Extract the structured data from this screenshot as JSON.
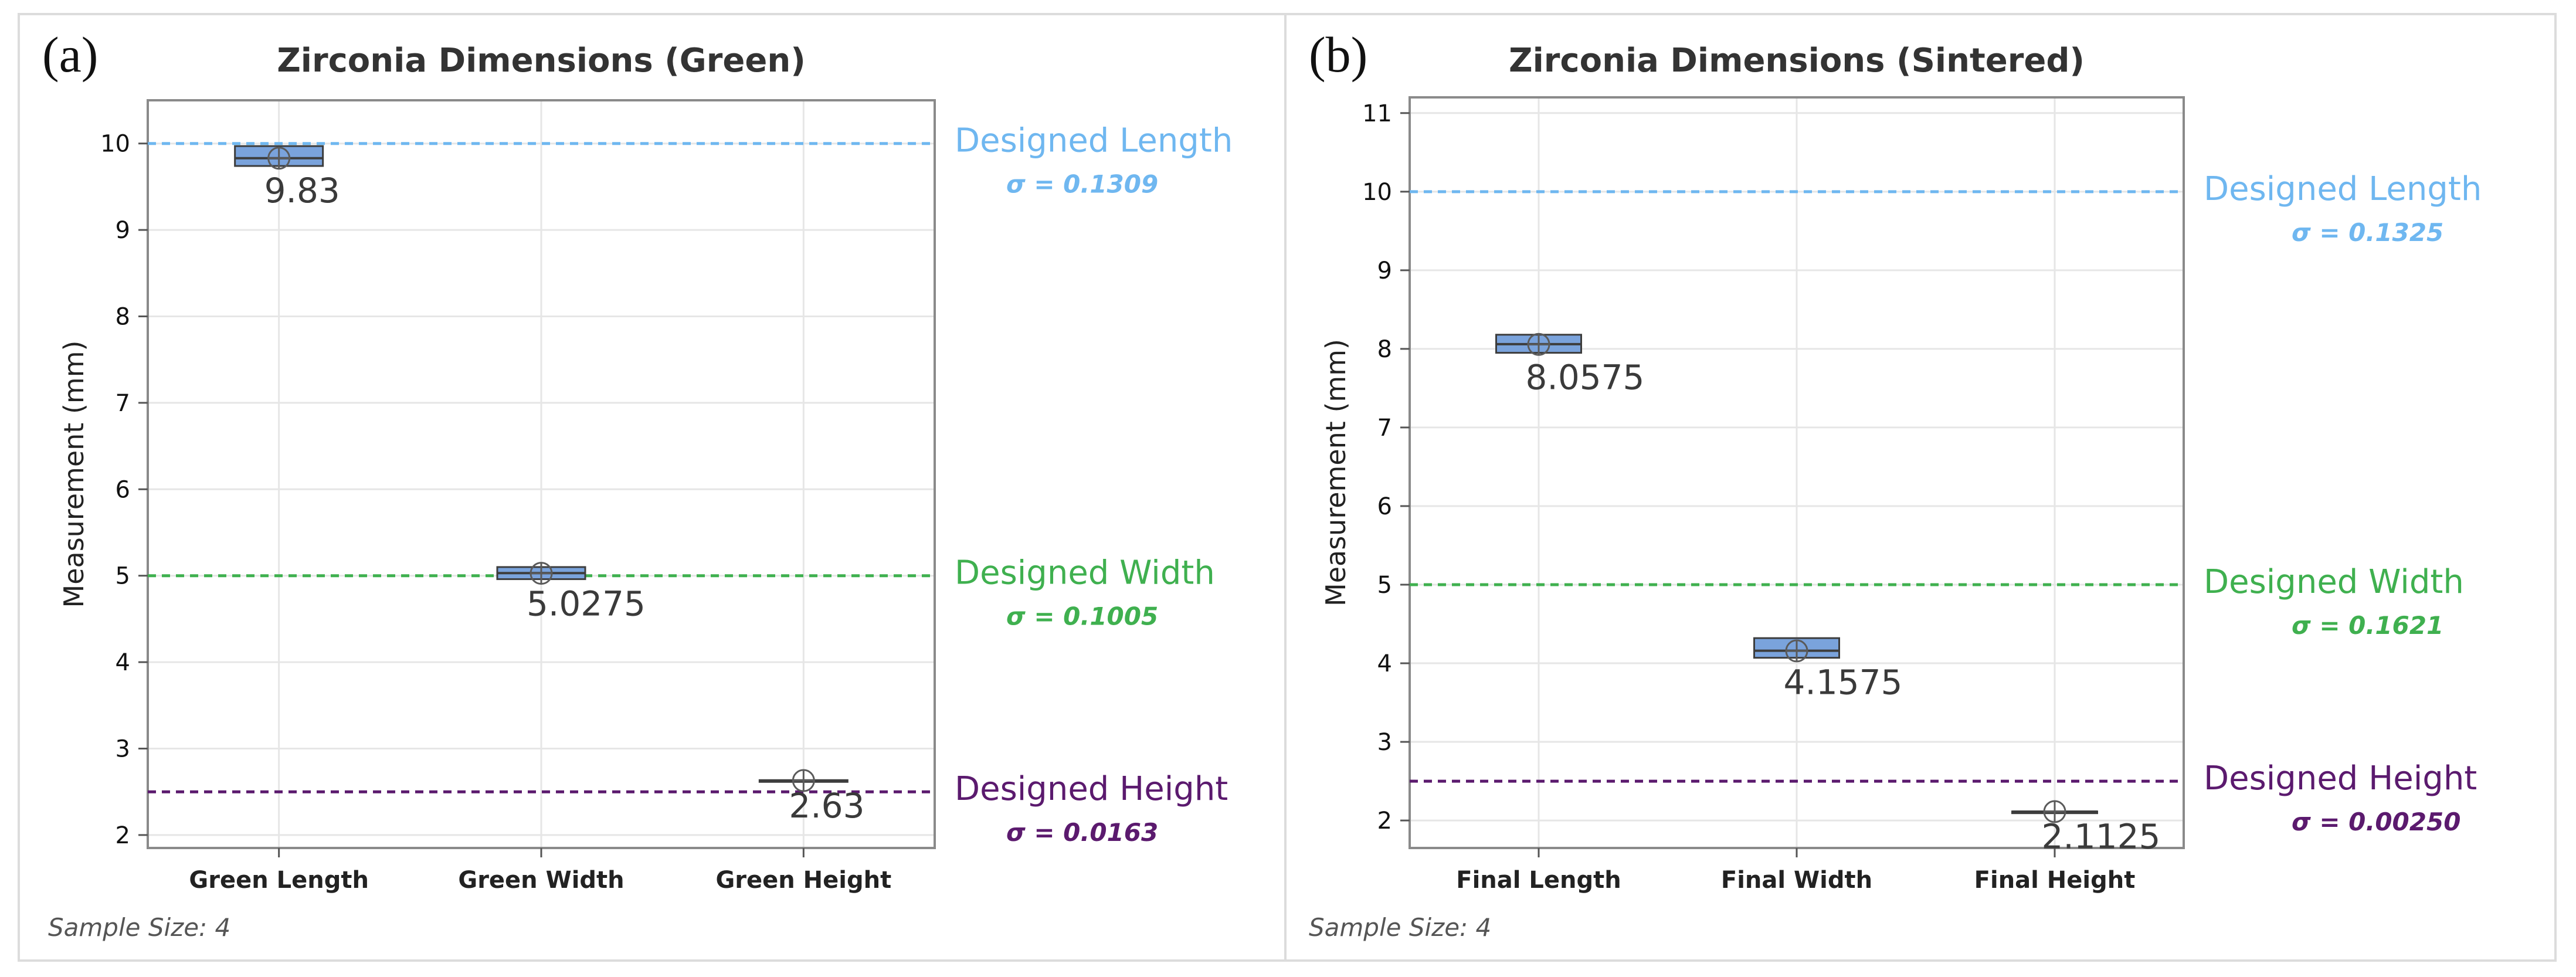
{
  "chart_data": [
    {
      "panel_label": "(a)",
      "type": "box",
      "title": "Zirconia Dimensions (Green)",
      "ylabel": "Measurement (mm)",
      "ylim": [
        1.85,
        10.5
      ],
      "yticks": [
        "2",
        "3",
        "4",
        "5",
        "6",
        "7",
        "8",
        "9",
        "10"
      ],
      "categories": [
        "Green Length",
        "Green Width",
        "Green Height"
      ],
      "boxes": [
        {
          "category": "Green Length",
          "q1": 9.74,
          "q3": 9.97,
          "median": 9.83,
          "mean": 9.83,
          "label": "9.83"
        },
        {
          "category": "Green Width",
          "q1": 4.96,
          "q3": 5.1,
          "median": 5.03,
          "mean": 5.0275,
          "label": "5.0275"
        },
        {
          "category": "Green Height",
          "q1": 2.625,
          "q3": 2.635,
          "median": 2.63,
          "mean": 2.63,
          "label": "2.63"
        }
      ],
      "reference_lines": [
        {
          "value": 10,
          "label": "Designed Length",
          "sigma": "σ = 0.1309",
          "color": "#6fb7f0"
        },
        {
          "value": 5,
          "label": "Designed Width",
          "sigma": "σ = 0.1005",
          "color": "#3fb04f"
        },
        {
          "value": 2.5,
          "label": "Designed Height",
          "sigma": "σ = 0.0163",
          "color": "#5b1a6e"
        }
      ],
      "footnote": "Sample Size: 4"
    },
    {
      "panel_label": "(b)",
      "type": "box",
      "title": "Zirconia Dimensions (Sintered)",
      "ylabel": "Measurement (mm)",
      "ylim": [
        1.65,
        11.2
      ],
      "yticks": [
        "2",
        "3",
        "4",
        "5",
        "6",
        "7",
        "8",
        "9",
        "10",
        "11"
      ],
      "categories": [
        "Final Length",
        "Final Width",
        "Final Height"
      ],
      "boxes": [
        {
          "category": "Final Length",
          "q1": 7.95,
          "q3": 8.18,
          "median": 8.06,
          "mean": 8.0575,
          "label": "8.0575"
        },
        {
          "category": "Final Width",
          "q1": 4.07,
          "q3": 4.32,
          "median": 4.16,
          "mean": 4.1575,
          "label": "4.1575"
        },
        {
          "category": "Final Height",
          "q1": 2.11,
          "q3": 2.115,
          "median": 2.1125,
          "mean": 2.1125,
          "label": "2.1125"
        }
      ],
      "reference_lines": [
        {
          "value": 10,
          "label": "Designed Length",
          "sigma": "σ = 0.1325",
          "color": "#6fb7f0"
        },
        {
          "value": 5,
          "label": "Designed Width",
          "sigma": "σ = 0.1621",
          "color": "#3fb04f"
        },
        {
          "value": 2.5,
          "label": "Designed Height",
          "sigma": "σ = 0.00250",
          "color": "#5b1a6e"
        }
      ],
      "footnote": "Sample Size: 4"
    }
  ]
}
